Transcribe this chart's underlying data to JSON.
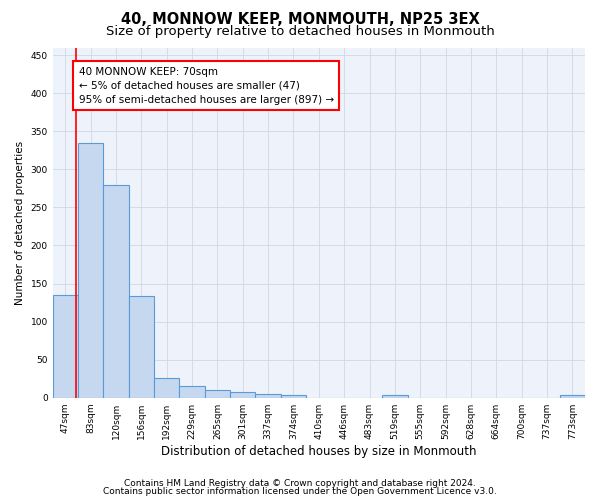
{
  "title": "40, MONNOW KEEP, MONMOUTH, NP25 3EX",
  "subtitle": "Size of property relative to detached houses in Monmouth",
  "xlabel": "Distribution of detached houses by size in Monmouth",
  "ylabel": "Number of detached properties",
  "footer_line1": "Contains HM Land Registry data © Crown copyright and database right 2024.",
  "footer_line2": "Contains public sector information licensed under the Open Government Licence v3.0.",
  "categories": [
    "47sqm",
    "83sqm",
    "120sqm",
    "156sqm",
    "192sqm",
    "229sqm",
    "265sqm",
    "301sqm",
    "337sqm",
    "374sqm",
    "410sqm",
    "446sqm",
    "483sqm",
    "519sqm",
    "555sqm",
    "592sqm",
    "628sqm",
    "664sqm",
    "700sqm",
    "737sqm",
    "773sqm"
  ],
  "values": [
    135,
    335,
    280,
    133,
    26,
    15,
    10,
    7,
    5,
    4,
    0,
    0,
    0,
    4,
    0,
    0,
    0,
    0,
    0,
    0,
    4
  ],
  "bar_color": "#c5d8f0",
  "bar_edge_color": "#5b9bd5",
  "bar_linewidth": 0.8,
  "annotation_line1": "40 MONNOW KEEP: 70sqm",
  "annotation_line2": "← 5% of detached houses are smaller (47)",
  "annotation_line3": "95% of semi-detached houses are larger (897) →",
  "annotation_box_color": "white",
  "annotation_box_edge": "red",
  "vline_color": "red",
  "vline_linewidth": 1.2,
  "vline_x_index": 0.42,
  "ylim": [
    0,
    460
  ],
  "yticks": [
    0,
    50,
    100,
    150,
    200,
    250,
    300,
    350,
    400,
    450
  ],
  "grid_color": "#d0d8e8",
  "background_color": "#eef2fa",
  "title_fontsize": 10.5,
  "subtitle_fontsize": 9.5,
  "xlabel_fontsize": 8.5,
  "ylabel_fontsize": 7.5,
  "tick_fontsize": 6.5,
  "annotation_fontsize": 7.5,
  "footer_fontsize": 6.5
}
